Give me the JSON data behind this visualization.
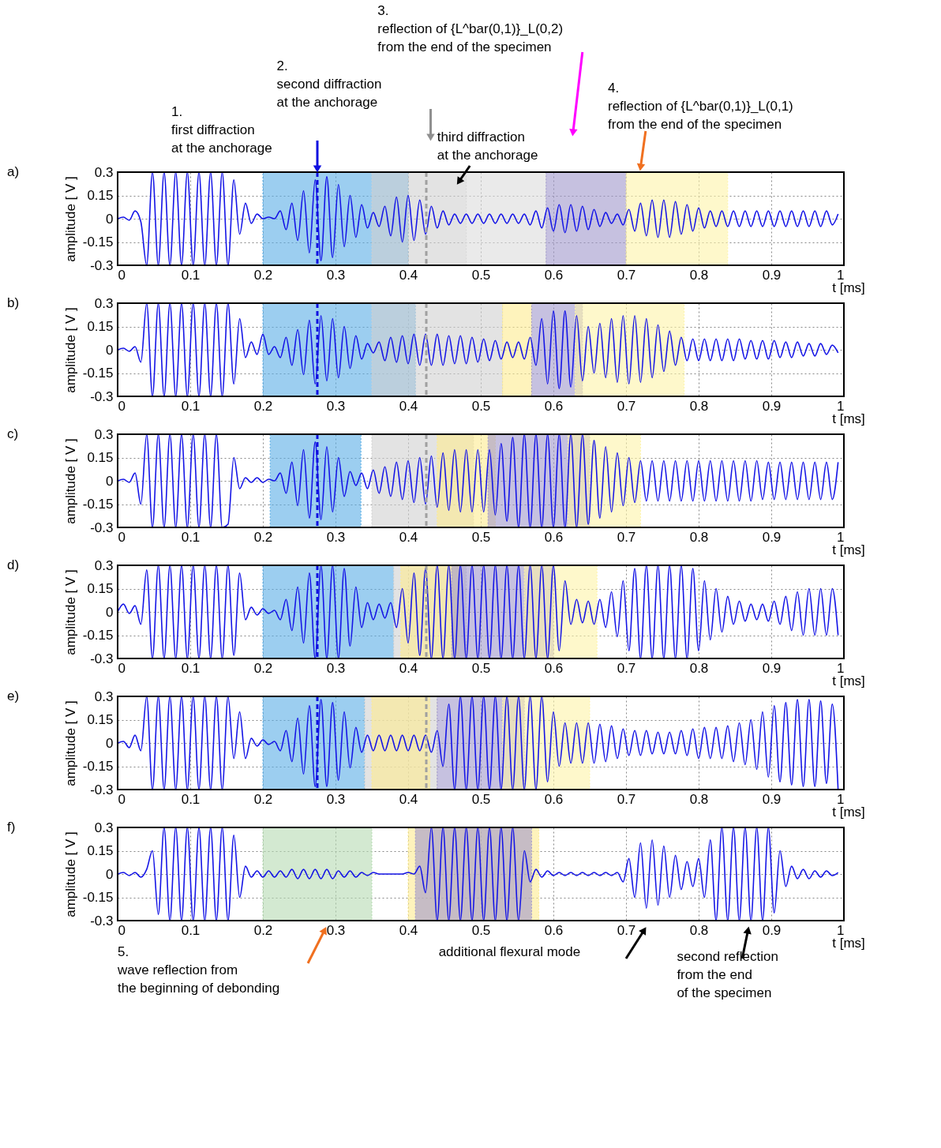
{
  "chart_data": [
    {
      "type": "line",
      "title": "a)",
      "xlabel": "t [ms]",
      "ylabel": "amplitude [ V ]",
      "xlim": [
        0,
        1
      ],
      "ylim": [
        -0.3,
        0.3
      ],
      "xticks": [
        0,
        0.1,
        0.2,
        0.3,
        0.4,
        0.5,
        0.6,
        0.7,
        0.8,
        0.9,
        1
      ],
      "yticks": [
        -0.3,
        -0.15,
        0,
        0.15,
        0.3
      ],
      "grid": true,
      "x": [
        0,
        0.008,
        0.016,
        0.024,
        0.032,
        0.04,
        0.048,
        0.056,
        0.064,
        0.072,
        0.08,
        0.088,
        0.096,
        0.104,
        0.112,
        0.12,
        0.128,
        0.136,
        0.144,
        0.152,
        0.16,
        0.168,
        0.176,
        0.184,
        0.192,
        0.2,
        0.208,
        0.216,
        0.224,
        0.232,
        0.24,
        0.248,
        0.256,
        0.264,
        0.272,
        0.28,
        0.288,
        0.296,
        0.304,
        0.312,
        0.32,
        0.328,
        0.336,
        0.344,
        0.352,
        0.36,
        0.368,
        0.376,
        0.384,
        0.392,
        0.4,
        0.408,
        0.416,
        0.424,
        0.432,
        0.44,
        0.448,
        0.456,
        0.464,
        0.472,
        0.48,
        0.488,
        0.496,
        0.504,
        0.512,
        0.52,
        0.528,
        0.536,
        0.544,
        0.552,
        0.56,
        0.568,
        0.576,
        0.584,
        0.592,
        0.6,
        0.608,
        0.616,
        0.624,
        0.632,
        0.64,
        0.648,
        0.656,
        0.664,
        0.672,
        0.68,
        0.688,
        0.696,
        0.704,
        0.712,
        0.72,
        0.728,
        0.736,
        0.744,
        0.752,
        0.76,
        0.768,
        0.776,
        0.784,
        0.792,
        0.8,
        0.808,
        0.816,
        0.824,
        0.832,
        0.84,
        0.848,
        0.856,
        0.864,
        0.872,
        0.88,
        0.888,
        0.896,
        0.904,
        0.912,
        0.92,
        0.928,
        0.936,
        0.944,
        0.952,
        0.96,
        0.968,
        0.976,
        0.984,
        0.992
      ],
      "series": [
        {
          "color": "#1414e6",
          "values": [
            0,
            0.01,
            -0.01,
            0.05,
            -0.02,
            -0.3,
            0.3,
            -0.3,
            0.3,
            -0.3,
            0.3,
            -0.3,
            0.3,
            -0.3,
            0.3,
            -0.3,
            0.3,
            -0.3,
            0.3,
            -0.3,
            0.25,
            -0.1,
            0.1,
            -0.03,
            0.03,
            0,
            0.01,
            0,
            0.05,
            -0.07,
            0.1,
            -0.14,
            0.18,
            -0.22,
            0.25,
            -0.27,
            0.27,
            -0.25,
            0.22,
            -0.18,
            0.15,
            -0.12,
            0.09,
            -0.06,
            0.04,
            -0.05,
            0.08,
            -0.11,
            0.14,
            -0.15,
            0.15,
            -0.14,
            0.12,
            -0.1,
            0.08,
            -0.06,
            0.05,
            -0.04,
            0.03,
            -0.03,
            0.03,
            -0.03,
            0.03,
            -0.03,
            0.03,
            -0.03,
            0.03,
            -0.03,
            0.03,
            -0.03,
            0.03,
            -0.04,
            0.05,
            -0.06,
            0.07,
            -0.08,
            0.09,
            -0.09,
            0.09,
            -0.08,
            0.08,
            -0.07,
            0.06,
            -0.05,
            0.04,
            -0.03,
            0.03,
            -0.04,
            0.06,
            -0.08,
            0.1,
            -0.11,
            0.12,
            -0.12,
            0.12,
            -0.12,
            0.11,
            -0.1,
            0.09,
            -0.08,
            0.07,
            -0.06,
            0.05,
            -0.05,
            0.05,
            -0.05,
            0.05,
            -0.05,
            0.05,
            -0.05,
            0.05,
            -0.05,
            0.05,
            -0.05,
            0.05,
            -0.05,
            0.05,
            -0.05,
            0.05,
            -0.05,
            0.05,
            -0.05,
            0.05,
            -0.04,
            0.03
          ]
        }
      ],
      "bands": [
        {
          "axis": "x",
          "from": 0.2,
          "to": 0.4,
          "color": "#5aaee6"
        },
        {
          "axis": "x",
          "from": 0.35,
          "to": 0.48,
          "color": "#d0d0d0"
        },
        {
          "axis": "x",
          "from": 0.48,
          "to": 0.59,
          "color": "#dcdcdc"
        },
        {
          "axis": "x",
          "from": 0.59,
          "to": 0.7,
          "color": "#a097cc"
        },
        {
          "axis": "x",
          "from": 0.7,
          "to": 0.84,
          "color": "#fdf3a8"
        }
      ],
      "ref_lines": [
        {
          "axis": "x",
          "value": 0.275,
          "color": "#1010e0",
          "line_style": "dashed"
        },
        {
          "axis": "x",
          "value": 0.425,
          "color": "#a0a0a0",
          "line_style": "dashed"
        }
      ],
      "annotations": [
        "1.\nfirst diffraction\nat the anchorage",
        "2.\nsecond diffraction\nat the anchorage",
        "third diffraction\nat the anchorage",
        "3.\nreflection of {L^bar(0,1)}_L(0,2)\nfrom the end of the specimen",
        "4.\nreflection of {L^bar(0,1)}_L(0,1)\nfrom the end of the specimen"
      ]
    },
    {
      "type": "line",
      "title": "b)",
      "xlabel": "t [ms]",
      "ylabel": "amplitude [ V ]",
      "xlim": [
        0,
        1
      ],
      "ylim": [
        -0.3,
        0.3
      ],
      "xticks": [
        0,
        0.1,
        0.2,
        0.3,
        0.4,
        0.5,
        0.6,
        0.7,
        0.8,
        0.9,
        1
      ],
      "yticks": [
        -0.3,
        -0.15,
        0,
        0.15,
        0.3
      ],
      "grid": true,
      "x": [
        0,
        0.008,
        0.016,
        0.024,
        0.032,
        0.04,
        0.048,
        0.056,
        0.064,
        0.072,
        0.08,
        0.088,
        0.096,
        0.104,
        0.112,
        0.12,
        0.128,
        0.136,
        0.144,
        0.152,
        0.16,
        0.168,
        0.176,
        0.184,
        0.192,
        0.2,
        0.208,
        0.216,
        0.224,
        0.232,
        0.24,
        0.248,
        0.256,
        0.264,
        0.272,
        0.28,
        0.288,
        0.296,
        0.304,
        0.312,
        0.32,
        0.328,
        0.336,
        0.344,
        0.352,
        0.36,
        0.368,
        0.376,
        0.384,
        0.392,
        0.4,
        0.408,
        0.416,
        0.424,
        0.432,
        0.44,
        0.448,
        0.456,
        0.464,
        0.472,
        0.48,
        0.488,
        0.496,
        0.504,
        0.512,
        0.52,
        0.528,
        0.536,
        0.544,
        0.552,
        0.56,
        0.568,
        0.576,
        0.584,
        0.592,
        0.6,
        0.608,
        0.616,
        0.624,
        0.632,
        0.64,
        0.648,
        0.656,
        0.664,
        0.672,
        0.68,
        0.688,
        0.696,
        0.704,
        0.712,
        0.72,
        0.728,
        0.736,
        0.744,
        0.752,
        0.76,
        0.768,
        0.776,
        0.784,
        0.792,
        0.8,
        0.808,
        0.816,
        0.824,
        0.832,
        0.84,
        0.848,
        0.856,
        0.864,
        0.872,
        0.88,
        0.888,
        0.896,
        0.904,
        0.912,
        0.92,
        0.928,
        0.936,
        0.944,
        0.952,
        0.96,
        0.968,
        0.976,
        0.984,
        0.992
      ],
      "series": [
        {
          "color": "#1414e6",
          "values": [
            0,
            0.01,
            -0.01,
            0.02,
            -0.08,
            0.3,
            -0.3,
            0.3,
            -0.3,
            0.3,
            -0.3,
            0.3,
            -0.3,
            0.3,
            -0.3,
            0.3,
            -0.3,
            0.3,
            -0.3,
            0.3,
            -0.22,
            0.2,
            -0.05,
            0.05,
            -0.03,
            0.1,
            -0.03,
            0.02,
            -0.05,
            0.08,
            -0.1,
            0.13,
            -0.16,
            0.19,
            -0.22,
            0.22,
            -0.2,
            0.2,
            -0.18,
            0.15,
            -0.12,
            0.09,
            -0.06,
            0.04,
            -0.02,
            0.05,
            -0.07,
            0.08,
            -0.08,
            0.09,
            -0.09,
            0.1,
            -0.1,
            0.1,
            -0.1,
            0.1,
            -0.1,
            0.09,
            -0.09,
            0.09,
            -0.09,
            0.08,
            -0.08,
            0.07,
            -0.07,
            0.06,
            -0.06,
            0.05,
            -0.05,
            0.05,
            -0.06,
            0.08,
            -0.1,
            0.2,
            -0.22,
            0.25,
            -0.25,
            0.25,
            -0.24,
            0.22,
            -0.2,
            0.15,
            -0.15,
            0.17,
            -0.18,
            0.2,
            -0.21,
            0.22,
            -0.22,
            0.22,
            -0.21,
            0.2,
            -0.18,
            0.16,
            -0.14,
            0.12,
            -0.1,
            0.08,
            -0.07,
            0.07,
            -0.07,
            0.07,
            -0.07,
            0.07,
            -0.07,
            0.07,
            -0.07,
            0.07,
            -0.06,
            0.06,
            -0.06,
            0.06,
            -0.06,
            0.06,
            -0.05,
            0.05,
            -0.05,
            0.05,
            -0.04,
            0.04,
            -0.04,
            0.04,
            -0.03,
            0.03,
            -0.02
          ]
        }
      ],
      "bands": [
        {
          "axis": "x",
          "from": 0.2,
          "to": 0.41,
          "color": "#5aaee6"
        },
        {
          "axis": "x",
          "from": 0.35,
          "to": 0.53,
          "color": "#d0d0d0"
        },
        {
          "axis": "x",
          "from": 0.53,
          "to": 0.57,
          "color": "#fdeb90"
        },
        {
          "axis": "x",
          "from": 0.57,
          "to": 0.64,
          "color": "#a097cc"
        },
        {
          "axis": "x",
          "from": 0.63,
          "to": 0.78,
          "color": "#fdf3a8"
        }
      ],
      "ref_lines": [
        {
          "axis": "x",
          "value": 0.275,
          "color": "#1010e0",
          "line_style": "dashed"
        },
        {
          "axis": "x",
          "value": 0.425,
          "color": "#a0a0a0",
          "line_style": "dashed"
        }
      ]
    },
    {
      "type": "line",
      "title": "c)",
      "xlabel": "t [ms]",
      "ylabel": "amplitude [ V ]",
      "xlim": [
        0,
        1
      ],
      "ylim": [
        -0.3,
        0.3
      ],
      "xticks": [
        0,
        0.1,
        0.2,
        0.3,
        0.4,
        0.5,
        0.6,
        0.7,
        0.8,
        0.9,
        1
      ],
      "yticks": [
        -0.3,
        -0.15,
        0,
        0.15,
        0.3
      ],
      "grid": true,
      "x": [
        0,
        0.008,
        0.016,
        0.024,
        0.032,
        0.04,
        0.048,
        0.056,
        0.064,
        0.072,
        0.08,
        0.088,
        0.096,
        0.104,
        0.112,
        0.12,
        0.128,
        0.136,
        0.144,
        0.152,
        0.16,
        0.168,
        0.176,
        0.184,
        0.192,
        0.2,
        0.208,
        0.216,
        0.224,
        0.232,
        0.24,
        0.248,
        0.256,
        0.264,
        0.272,
        0.28,
        0.288,
        0.296,
        0.304,
        0.312,
        0.32,
        0.328,
        0.336,
        0.344,
        0.352,
        0.36,
        0.368,
        0.376,
        0.384,
        0.392,
        0.4,
        0.408,
        0.416,
        0.424,
        0.432,
        0.44,
        0.448,
        0.456,
        0.464,
        0.472,
        0.48,
        0.488,
        0.496,
        0.504,
        0.512,
        0.52,
        0.528,
        0.536,
        0.544,
        0.552,
        0.56,
        0.568,
        0.576,
        0.584,
        0.592,
        0.6,
        0.608,
        0.616,
        0.624,
        0.632,
        0.64,
        0.648,
        0.656,
        0.664,
        0.672,
        0.68,
        0.688,
        0.696,
        0.704,
        0.712,
        0.72,
        0.728,
        0.736,
        0.744,
        0.752,
        0.76,
        0.768,
        0.776,
        0.784,
        0.792,
        0.8,
        0.808,
        0.816,
        0.824,
        0.832,
        0.84,
        0.848,
        0.856,
        0.864,
        0.872,
        0.88,
        0.888,
        0.896,
        0.904,
        0.912,
        0.92,
        0.928,
        0.936,
        0.944,
        0.952,
        0.96,
        0.968,
        0.976,
        0.984,
        0.992
      ],
      "series": [
        {
          "color": "#1414e6",
          "values": [
            0,
            0.01,
            -0.01,
            0.05,
            -0.15,
            0.3,
            -0.3,
            0.3,
            -0.3,
            0.3,
            -0.3,
            0.3,
            -0.3,
            0.3,
            -0.3,
            0.3,
            -0.3,
            0.3,
            -0.3,
            -0.28,
            0.15,
            -0.05,
            0.02,
            -0.01,
            0.02,
            -0.01,
            0.01,
            0,
            0.05,
            -0.08,
            0.12,
            -0.16,
            0.2,
            -0.24,
            0.25,
            -0.25,
            0.22,
            -0.2,
            0.15,
            -0.1,
            0.06,
            -0.03,
            0.05,
            -0.05,
            0.07,
            -0.08,
            0.09,
            -0.1,
            0.12,
            -0.12,
            0.13,
            -0.14,
            0.15,
            -0.15,
            0.16,
            -0.17,
            0.18,
            -0.19,
            0.2,
            -0.2,
            0.2,
            -0.2,
            0.2,
            -0.2,
            0.2,
            -0.22,
            0.24,
            -0.26,
            0.28,
            -0.3,
            0.3,
            -0.3,
            0.3,
            -0.3,
            0.3,
            -0.3,
            0.3,
            -0.3,
            0.3,
            -0.3,
            0.3,
            -0.28,
            0.26,
            -0.24,
            0.22,
            -0.2,
            0.18,
            -0.16,
            0.15,
            -0.14,
            0.13,
            -0.13,
            0.13,
            -0.13,
            0.13,
            -0.13,
            0.13,
            -0.13,
            0.13,
            -0.13,
            0.13,
            -0.13,
            0.13,
            -0.13,
            0.13,
            -0.13,
            0.13,
            -0.13,
            0.13,
            -0.13,
            0.13,
            -0.12,
            0.12,
            -0.12,
            0.12,
            -0.12,
            0.12,
            -0.12,
            0.12,
            -0.12,
            0.12,
            -0.12,
            0.12,
            -0.12,
            0.12
          ]
        }
      ],
      "bands": [
        {
          "axis": "x",
          "from": 0.21,
          "to": 0.335,
          "color": "#5aaee6"
        },
        {
          "axis": "x",
          "from": 0.35,
          "to": 0.49,
          "color": "#d0d0d0"
        },
        {
          "axis": "x",
          "from": 0.44,
          "to": 0.52,
          "color": "#fdeb90"
        },
        {
          "axis": "x",
          "from": 0.51,
          "to": 0.65,
          "color": "#a097cc"
        },
        {
          "axis": "x",
          "from": 0.62,
          "to": 0.72,
          "color": "#fdf3a8"
        }
      ],
      "ref_lines": [
        {
          "axis": "x",
          "value": 0.275,
          "color": "#1010e0",
          "line_style": "dashed"
        },
        {
          "axis": "x",
          "value": 0.425,
          "color": "#a0a0a0",
          "line_style": "dashed"
        }
      ]
    },
    {
      "type": "line",
      "title": "d)",
      "xlabel": "t [ms]",
      "ylabel": "amplitude [ V ]",
      "xlim": [
        0,
        1
      ],
      "ylim": [
        -0.3,
        0.3
      ],
      "xticks": [
        0,
        0.1,
        0.2,
        0.3,
        0.4,
        0.5,
        0.6,
        0.7,
        0.8,
        0.9,
        1
      ],
      "yticks": [
        -0.3,
        -0.15,
        0,
        0.15,
        0.3
      ],
      "grid": true,
      "x": [
        0,
        0.008,
        0.016,
        0.024,
        0.032,
        0.04,
        0.048,
        0.056,
        0.064,
        0.072,
        0.08,
        0.088,
        0.096,
        0.104,
        0.112,
        0.12,
        0.128,
        0.136,
        0.144,
        0.152,
        0.16,
        0.168,
        0.176,
        0.184,
        0.192,
        0.2,
        0.208,
        0.216,
        0.224,
        0.232,
        0.24,
        0.248,
        0.256,
        0.264,
        0.272,
        0.28,
        0.288,
        0.296,
        0.304,
        0.312,
        0.32,
        0.328,
        0.336,
        0.344,
        0.352,
        0.36,
        0.368,
        0.376,
        0.384,
        0.392,
        0.4,
        0.408,
        0.416,
        0.424,
        0.432,
        0.44,
        0.448,
        0.456,
        0.464,
        0.472,
        0.48,
        0.488,
        0.496,
        0.504,
        0.512,
        0.52,
        0.528,
        0.536,
        0.544,
        0.552,
        0.56,
        0.568,
        0.576,
        0.584,
        0.592,
        0.6,
        0.608,
        0.616,
        0.624,
        0.632,
        0.64,
        0.648,
        0.656,
        0.664,
        0.672,
        0.68,
        0.688,
        0.696,
        0.704,
        0.712,
        0.72,
        0.728,
        0.736,
        0.744,
        0.752,
        0.76,
        0.768,
        0.776,
        0.784,
        0.792,
        0.8,
        0.808,
        0.816,
        0.824,
        0.832,
        0.84,
        0.848,
        0.856,
        0.864,
        0.872,
        0.88,
        0.888,
        0.896,
        0.904,
        0.912,
        0.92,
        0.928,
        0.936,
        0.944,
        0.952,
        0.96,
        0.968,
        0.976,
        0.984,
        0.992
      ],
      "series": [
        {
          "color": "#1414e6",
          "values": [
            0,
            0.05,
            -0.01,
            0.04,
            -0.08,
            0.27,
            -0.3,
            0.3,
            -0.3,
            0.3,
            -0.3,
            0.3,
            -0.3,
            0.3,
            -0.3,
            0.3,
            -0.3,
            0.3,
            -0.3,
            0.3,
            -0.28,
            0.25,
            -0.05,
            0.03,
            -0.02,
            0.02,
            -0.01,
            0.01,
            -0.05,
            0.08,
            -0.12,
            0.16,
            -0.2,
            0.25,
            -0.3,
            0.3,
            -0.3,
            0.3,
            -0.3,
            0.28,
            -0.22,
            0.16,
            -0.1,
            0.06,
            -0.05,
            0.05,
            -0.04,
            0.06,
            -0.1,
            0.15,
            -0.2,
            0.25,
            -0.28,
            0.28,
            -0.3,
            0.3,
            -0.3,
            0.3,
            -0.3,
            0.3,
            -0.3,
            0.3,
            -0.3,
            0.3,
            -0.3,
            0.3,
            -0.3,
            0.3,
            -0.3,
            0.3,
            -0.3,
            0.3,
            -0.3,
            0.3,
            -0.3,
            0.3,
            -0.25,
            0.2,
            -0.08,
            0.08,
            -0.07,
            0.07,
            -0.08,
            0.08,
            -0.1,
            0.13,
            -0.16,
            0.2,
            -0.25,
            0.28,
            -0.3,
            0.3,
            -0.3,
            0.3,
            -0.3,
            0.3,
            -0.3,
            0.3,
            -0.3,
            0.28,
            -0.25,
            0.2,
            -0.18,
            0.15,
            -0.13,
            0.1,
            -0.08,
            0.07,
            -0.06,
            0.05,
            -0.05,
            0.05,
            -0.06,
            0.07,
            -0.08,
            0.1,
            -0.12,
            0.13,
            -0.15,
            0.15,
            -0.15,
            0.15,
            -0.15,
            0.15,
            -0.15
          ]
        }
      ],
      "bands": [
        {
          "axis": "x",
          "from": 0.2,
          "to": 0.38,
          "color": "#5aaee6"
        },
        {
          "axis": "x",
          "from": 0.38,
          "to": 0.48,
          "color": "#d0d0d0"
        },
        {
          "axis": "x",
          "from": 0.39,
          "to": 0.47,
          "color": "#fdeb90"
        },
        {
          "axis": "x",
          "from": 0.46,
          "to": 0.6,
          "color": "#a097cc"
        },
        {
          "axis": "x",
          "from": 0.56,
          "to": 0.66,
          "color": "#fdf3a8"
        }
      ],
      "ref_lines": [
        {
          "axis": "x",
          "value": 0.275,
          "color": "#1010e0",
          "line_style": "dashed"
        },
        {
          "axis": "x",
          "value": 0.425,
          "color": "#a0a0a0",
          "line_style": "dashed"
        }
      ]
    },
    {
      "type": "line",
      "title": "e)",
      "xlabel": "t [ms]",
      "ylabel": "amplitude [ V ]",
      "xlim": [
        0,
        1
      ],
      "ylim": [
        -0.3,
        0.3
      ],
      "xticks": [
        0,
        0.1,
        0.2,
        0.3,
        0.4,
        0.5,
        0.6,
        0.7,
        0.8,
        0.9,
        1
      ],
      "yticks": [
        -0.3,
        -0.15,
        0,
        0.15,
        0.3
      ],
      "grid": true,
      "x": [
        0,
        0.008,
        0.016,
        0.024,
        0.032,
        0.04,
        0.048,
        0.056,
        0.064,
        0.072,
        0.08,
        0.088,
        0.096,
        0.104,
        0.112,
        0.12,
        0.128,
        0.136,
        0.144,
        0.152,
        0.16,
        0.168,
        0.176,
        0.184,
        0.192,
        0.2,
        0.208,
        0.216,
        0.224,
        0.232,
        0.24,
        0.248,
        0.256,
        0.264,
        0.272,
        0.28,
        0.288,
        0.296,
        0.304,
        0.312,
        0.32,
        0.328,
        0.336,
        0.344,
        0.352,
        0.36,
        0.368,
        0.376,
        0.384,
        0.392,
        0.4,
        0.408,
        0.416,
        0.424,
        0.432,
        0.44,
        0.448,
        0.456,
        0.464,
        0.472,
        0.48,
        0.488,
        0.496,
        0.504,
        0.512,
        0.52,
        0.528,
        0.536,
        0.544,
        0.552,
        0.56,
        0.568,
        0.576,
        0.584,
        0.592,
        0.6,
        0.608,
        0.616,
        0.624,
        0.632,
        0.64,
        0.648,
        0.656,
        0.664,
        0.672,
        0.68,
        0.688,
        0.696,
        0.704,
        0.712,
        0.72,
        0.728,
        0.736,
        0.744,
        0.752,
        0.76,
        0.768,
        0.776,
        0.784,
        0.792,
        0.8,
        0.808,
        0.816,
        0.824,
        0.832,
        0.84,
        0.848,
        0.856,
        0.864,
        0.872,
        0.88,
        0.888,
        0.896,
        0.904,
        0.912,
        0.92,
        0.928,
        0.936,
        0.944,
        0.952,
        0.96,
        0.968,
        0.976,
        0.984,
        0.992
      ],
      "series": [
        {
          "color": "#1414e6",
          "values": [
            0,
            0.01,
            -0.03,
            0.05,
            -0.05,
            0.3,
            -0.3,
            0.3,
            -0.3,
            0.3,
            -0.3,
            0.3,
            -0.3,
            0.3,
            -0.3,
            0.3,
            -0.3,
            0.3,
            -0.3,
            0.3,
            -0.1,
            0.2,
            -0.1,
            0.03,
            -0.02,
            0.02,
            -0.01,
            0.01,
            -0.05,
            0.08,
            -0.12,
            0.16,
            -0.2,
            0.24,
            -0.28,
            0.28,
            -0.28,
            0.26,
            -0.24,
            0.2,
            -0.16,
            0.1,
            -0.06,
            0.05,
            -0.05,
            0.05,
            -0.05,
            0.05,
            -0.05,
            0.05,
            -0.05,
            0.05,
            -0.05,
            0.05,
            -0.06,
            0.08,
            -0.15,
            0.25,
            -0.3,
            0.3,
            -0.3,
            0.3,
            -0.3,
            0.3,
            -0.3,
            0.3,
            -0.3,
            0.3,
            -0.3,
            0.3,
            -0.3,
            0.3,
            -0.3,
            0.3,
            -0.25,
            0.2,
            -0.15,
            0.13,
            -0.13,
            0.13,
            -0.13,
            0.13,
            -0.13,
            0.12,
            -0.12,
            0.11,
            -0.1,
            0.09,
            -0.08,
            0.08,
            -0.08,
            0.08,
            -0.07,
            0.07,
            -0.07,
            0.07,
            -0.07,
            0.08,
            -0.08,
            0.09,
            -0.1,
            0.1,
            -0.1,
            0.1,
            -0.1,
            0.11,
            -0.12,
            0.13,
            -0.14,
            0.15,
            -0.17,
            0.2,
            -0.22,
            0.24,
            -0.25,
            0.26,
            -0.27,
            0.28,
            -0.28,
            0.28,
            -0.28,
            0.27,
            -0.26,
            0.25,
            -0.3
          ]
        }
      ],
      "bands": [
        {
          "axis": "x",
          "from": 0.2,
          "to": 0.34,
          "color": "#5aaee6"
        },
        {
          "axis": "x",
          "from": 0.34,
          "to": 0.44,
          "color": "#d0d0d0"
        },
        {
          "axis": "x",
          "from": 0.35,
          "to": 0.43,
          "color": "#fdeb90"
        },
        {
          "axis": "x",
          "from": 0.44,
          "to": 0.56,
          "color": "#a097cc"
        },
        {
          "axis": "x",
          "from": 0.53,
          "to": 0.65,
          "color": "#fdf3a8"
        }
      ],
      "ref_lines": [
        {
          "axis": "x",
          "value": 0.275,
          "color": "#1010e0",
          "line_style": "dashed"
        },
        {
          "axis": "x",
          "value": 0.425,
          "color": "#a0a0a0",
          "line_style": "dashed"
        }
      ]
    },
    {
      "type": "line",
      "title": "f)",
      "xlabel": "t [ms]",
      "ylabel": "amplitude [ V ]",
      "xlim": [
        0,
        1
      ],
      "ylim": [
        -0.3,
        0.3
      ],
      "xticks": [
        0,
        0.1,
        0.2,
        0.3,
        0.4,
        0.5,
        0.6,
        0.7,
        0.8,
        0.9,
        1
      ],
      "yticks": [
        -0.3,
        -0.15,
        0,
        0.15,
        0.3
      ],
      "grid": true,
      "x": [
        0,
        0.008,
        0.016,
        0.024,
        0.032,
        0.04,
        0.048,
        0.056,
        0.064,
        0.072,
        0.08,
        0.088,
        0.096,
        0.104,
        0.112,
        0.12,
        0.128,
        0.136,
        0.144,
        0.152,
        0.16,
        0.168,
        0.176,
        0.184,
        0.192,
        0.2,
        0.208,
        0.216,
        0.224,
        0.232,
        0.24,
        0.248,
        0.256,
        0.264,
        0.272,
        0.28,
        0.288,
        0.296,
        0.304,
        0.312,
        0.32,
        0.328,
        0.336,
        0.344,
        0.352,
        0.36,
        0.368,
        0.376,
        0.384,
        0.392,
        0.4,
        0.408,
        0.416,
        0.424,
        0.432,
        0.44,
        0.448,
        0.456,
        0.464,
        0.472,
        0.48,
        0.488,
        0.496,
        0.504,
        0.512,
        0.52,
        0.528,
        0.536,
        0.544,
        0.552,
        0.56,
        0.568,
        0.576,
        0.584,
        0.592,
        0.6,
        0.608,
        0.616,
        0.624,
        0.632,
        0.64,
        0.648,
        0.656,
        0.664,
        0.672,
        0.68,
        0.688,
        0.696,
        0.704,
        0.712,
        0.72,
        0.728,
        0.736,
        0.744,
        0.752,
        0.76,
        0.768,
        0.776,
        0.784,
        0.792,
        0.8,
        0.808,
        0.816,
        0.824,
        0.832,
        0.84,
        0.848,
        0.856,
        0.864,
        0.872,
        0.88,
        0.888,
        0.896,
        0.904,
        0.912,
        0.92,
        0.928,
        0.936,
        0.944,
        0.952,
        0.96,
        0.968,
        0.976,
        0.984,
        0.992
      ],
      "series": [
        {
          "color": "#1414e6",
          "values": [
            0,
            0.01,
            -0.01,
            0.01,
            -0.02,
            0.03,
            0.15,
            -0.26,
            0.3,
            -0.3,
            0.3,
            -0.3,
            0.3,
            -0.3,
            0.3,
            -0.3,
            0.3,
            -0.3,
            0.3,
            -0.3,
            0.25,
            -0.15,
            0.05,
            -0.02,
            0.02,
            -0.02,
            0.02,
            -0.02,
            0.02,
            -0.02,
            0.03,
            -0.03,
            0.03,
            -0.03,
            0.03,
            -0.03,
            0.03,
            -0.03,
            0.02,
            -0.02,
            0.02,
            -0.02,
            0.01,
            -0.01,
            0.01,
            0,
            0,
            0,
            0,
            0,
            0.01,
            0,
            0.05,
            -0.12,
            0.3,
            -0.3,
            0.3,
            -0.3,
            0.3,
            -0.3,
            0.3,
            -0.3,
            0.3,
            -0.3,
            0.3,
            -0.3,
            0.3,
            -0.3,
            0.3,
            -0.3,
            0.15,
            -0.05,
            0.03,
            -0.02,
            0.02,
            -0.01,
            0.01,
            -0.01,
            0.01,
            -0.01,
            0.01,
            -0.01,
            0.01,
            -0.01,
            0.01,
            -0.01,
            0.01,
            -0.05,
            0.1,
            -0.15,
            0.2,
            -0.22,
            0.22,
            -0.2,
            0.18,
            -0.15,
            0.12,
            -0.1,
            0.08,
            -0.08,
            0.1,
            -0.15,
            0.22,
            -0.3,
            0.3,
            -0.3,
            0.3,
            -0.3,
            0.3,
            -0.3,
            0.3,
            -0.3,
            0.3,
            -0.25,
            0.15,
            -0.08,
            0.05,
            -0.03,
            0.03,
            -0.03,
            0.02,
            -0.02,
            0.02,
            -0.01,
            0.01
          ]
        }
      ],
      "bands": [
        {
          "axis": "x",
          "from": 0.2,
          "to": 0.35,
          "color": "#b6dbb2"
        },
        {
          "axis": "x",
          "from": 0.4,
          "to": 0.58,
          "color": "#fdeb90"
        },
        {
          "axis": "x",
          "from": 0.41,
          "to": 0.57,
          "color": "#a097cc"
        }
      ],
      "annotations": [
        "5.\nwave reflection from\nthe beginning of debonding",
        "additional flexural mode",
        "second reflection\nfrom the end\nof the specimen"
      ]
    }
  ]
}
